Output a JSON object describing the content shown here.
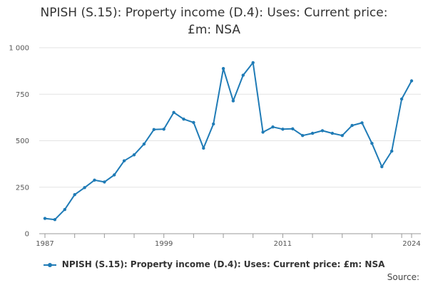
{
  "title_lines": [
    "NPISH (S.15): Property income (D.4): Uses: Current price:",
    "£m: NSA"
  ],
  "source_label": "Source:",
  "colors": {
    "series": "#1f7bb6",
    "grid": "#e3e3e3",
    "axis": "#999999"
  },
  "chart_data": {
    "type": "line",
    "title": "NPISH (S.15): Property income (D.4): Uses: Current price: £m: NSA",
    "xlabel": "",
    "ylabel": "",
    "xlim": [
      1987,
      2024
    ],
    "ylim": [
      0,
      1000
    ],
    "x_ticks": [
      "1987",
      "1999",
      "2011",
      "2024"
    ],
    "y_ticks": [
      {
        "value": 0,
        "label": "0"
      },
      {
        "value": 250,
        "label": "250"
      },
      {
        "value": 500,
        "label": "500"
      },
      {
        "value": 750,
        "label": "750"
      },
      {
        "value": 1000,
        "label": "1 000"
      }
    ],
    "grid": true,
    "legend_position": "bottom",
    "series": [
      {
        "name": "NPISH (S.15): Property income (D.4): Uses: Current price: £m: NSA",
        "x": [
          1987,
          1988,
          1989,
          1990,
          1991,
          1992,
          1993,
          1994,
          1995,
          1996,
          1997,
          1998,
          1999,
          2000,
          2001,
          2002,
          2003,
          2004,
          2005,
          2006,
          2007,
          2008,
          2009,
          2010,
          2011,
          2012,
          2013,
          2014,
          2015,
          2016,
          2017,
          2018,
          2019,
          2020,
          2021,
          2022,
          2023,
          2024
        ],
        "values": [
          82,
          76,
          130,
          210,
          248,
          288,
          278,
          316,
          392,
          424,
          482,
          560,
          562,
          652,
          616,
          598,
          460,
          590,
          888,
          714,
          852,
          920,
          546,
          574,
          562,
          564,
          528,
          540,
          554,
          540,
          528,
          582,
          596,
          486,
          360,
          444,
          724,
          822
        ]
      }
    ]
  }
}
